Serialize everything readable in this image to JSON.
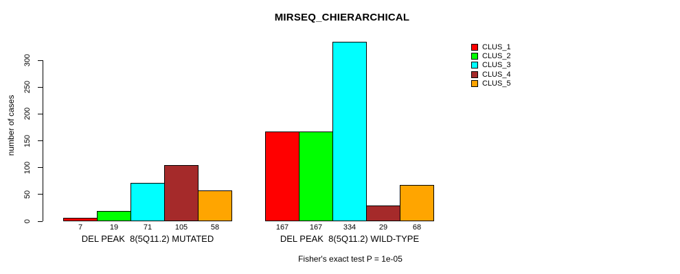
{
  "chart_data": {
    "type": "bar",
    "title": "MIRSEQ_CHIERARCHICAL",
    "ylabel": "number of cases",
    "xlabel": "",
    "ylim": [
      0,
      300
    ],
    "yticks": [
      0,
      50,
      100,
      150,
      200,
      250,
      300
    ],
    "grid": false,
    "legend_position": "right",
    "categories": [
      "DEL PEAK  8(5Q11.2) MUTATED",
      "DEL PEAK  8(5Q11.2) WILD-TYPE"
    ],
    "series": [
      {
        "name": "CLUS_1",
        "color": "#FF0000",
        "values": [
          7,
          167
        ]
      },
      {
        "name": "CLUS_2",
        "color": "#00FF00",
        "values": [
          19,
          167
        ]
      },
      {
        "name": "CLUS_3",
        "color": "#00FFFF",
        "values": [
          71,
          334
        ]
      },
      {
        "name": "CLUS_4",
        "color": "#A52A2A",
        "values": [
          105,
          29
        ]
      },
      {
        "name": "CLUS_5",
        "color": "#FFA500",
        "values": [
          58,
          68
        ]
      }
    ],
    "footnote": "Fisher's exact test P = 1e-05"
  }
}
